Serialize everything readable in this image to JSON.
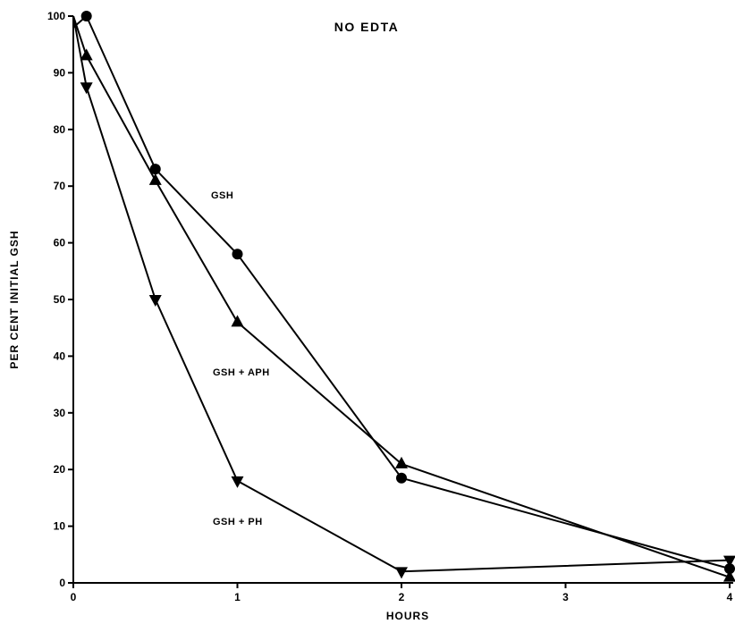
{
  "chart_data": {
    "type": "line",
    "title": "NO EDTA",
    "xlabel": "HOURS",
    "ylabel": "PER CENT INITIAL GSH",
    "xlim": [
      0,
      4
    ],
    "ylim": [
      0,
      100
    ],
    "x_ticks": [
      0,
      1,
      2,
      3,
      4
    ],
    "y_ticks": [
      0,
      10,
      20,
      30,
      40,
      50,
      60,
      70,
      80,
      90,
      100
    ],
    "grid": false,
    "series": [
      {
        "marker": "circle",
        "points": [
          [
            0,
            98
          ],
          [
            0.08,
            100
          ],
          [
            0.5,
            73
          ],
          [
            1,
            58
          ],
          [
            2,
            18.5
          ],
          [
            4,
            2.5
          ]
        ]
      },
      {
        "marker": "triangle-up",
        "points": [
          [
            0,
            100
          ],
          [
            0.08,
            93
          ],
          [
            0.5,
            71
          ],
          [
            1,
            46
          ],
          [
            2,
            21
          ],
          [
            4,
            1
          ]
        ]
      },
      {
        "marker": "triangle-down",
        "points": [
          [
            0,
            100
          ],
          [
            0.08,
            87.5
          ],
          [
            0.5,
            50
          ],
          [
            1,
            18
          ],
          [
            2,
            2
          ],
          [
            4,
            4
          ]
        ]
      }
    ],
    "annotations": [
      {
        "text": "GSH",
        "series": 0
      },
      {
        "text": "GSH + APH",
        "series": 1
      },
      {
        "text": "GSH + PH",
        "series": 2
      }
    ]
  }
}
